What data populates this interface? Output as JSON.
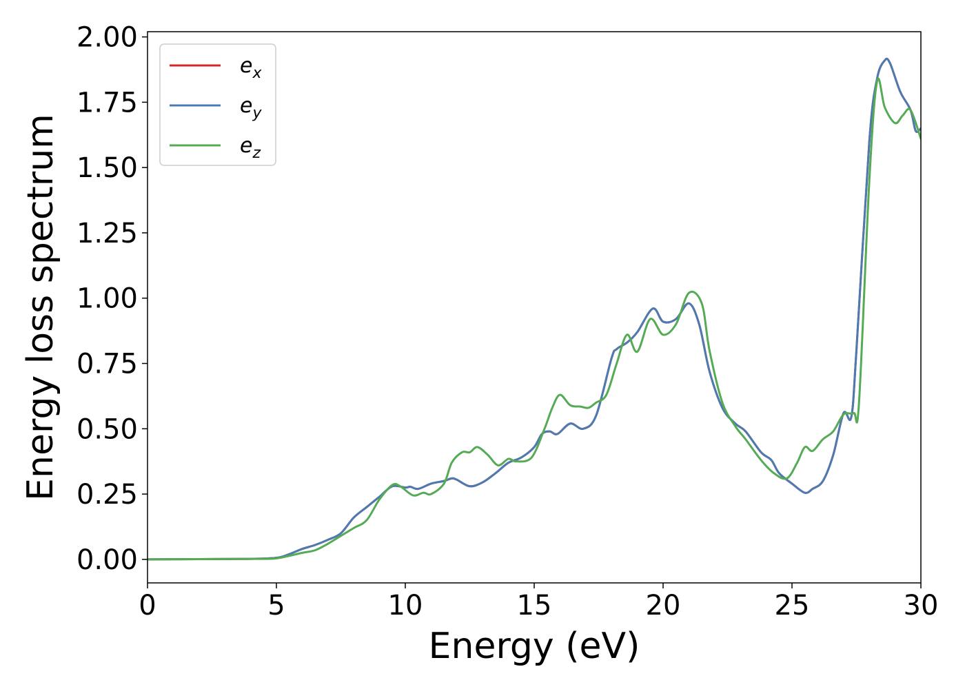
{
  "chart_data": {
    "type": "line",
    "xlabel": "Energy (eV)",
    "ylabel": "Energy loss spectrum",
    "xlim": [
      0,
      30
    ],
    "ylim": [
      -0.09,
      2.02
    ],
    "xticks": [
      0,
      5,
      10,
      15,
      20,
      25,
      30
    ],
    "xtick_labels": [
      "0",
      "5",
      "10",
      "15",
      "20",
      "25",
      "30"
    ],
    "yticks": [
      0,
      0.25,
      0.5,
      0.75,
      1.0,
      1.25,
      1.5,
      1.75,
      2.0
    ],
    "ytick_labels": [
      "0.00",
      "0.25",
      "0.50",
      "0.75",
      "1.00",
      "1.25",
      "1.50",
      "1.75",
      "2.00"
    ],
    "grid": false,
    "legend_position": "top-left",
    "series": [
      {
        "legend_base": "e",
        "legend_sub": "x",
        "color": "#d62728",
        "points": [
          [
            0,
            0
          ],
          [
            2,
            0.001
          ],
          [
            4,
            0.002
          ],
          [
            5,
            0.006
          ],
          [
            5.5,
            0.02
          ],
          [
            6,
            0.04
          ],
          [
            6.5,
            0.055
          ],
          [
            7,
            0.075
          ],
          [
            7.5,
            0.1
          ],
          [
            8,
            0.16
          ],
          [
            8.5,
            0.2
          ],
          [
            9,
            0.24
          ],
          [
            9.5,
            0.28
          ],
          [
            10,
            0.275
          ],
          [
            10.2,
            0.278
          ],
          [
            10.5,
            0.27
          ],
          [
            11,
            0.29
          ],
          [
            11.5,
            0.3
          ],
          [
            11.8,
            0.31
          ],
          [
            12,
            0.305
          ],
          [
            12.5,
            0.28
          ],
          [
            13,
            0.295
          ],
          [
            13.5,
            0.33
          ],
          [
            14,
            0.37
          ],
          [
            14.5,
            0.39
          ],
          [
            15,
            0.43
          ],
          [
            15.3,
            0.48
          ],
          [
            15.6,
            0.49
          ],
          [
            15.9,
            0.48
          ],
          [
            16.4,
            0.52
          ],
          [
            16.9,
            0.5
          ],
          [
            17.4,
            0.55
          ],
          [
            18,
            0.77
          ],
          [
            18.2,
            0.805
          ],
          [
            18.6,
            0.83
          ],
          [
            19,
            0.87
          ],
          [
            19.6,
            0.96
          ],
          [
            20,
            0.91
          ],
          [
            20.5,
            0.92
          ],
          [
            21,
            0.98
          ],
          [
            21.4,
            0.9
          ],
          [
            21.8,
            0.72
          ],
          [
            22.3,
            0.58
          ],
          [
            22.8,
            0.52
          ],
          [
            23.2,
            0.49
          ],
          [
            23.8,
            0.41
          ],
          [
            24.2,
            0.38
          ],
          [
            24.5,
            0.33
          ],
          [
            25,
            0.29
          ],
          [
            25.5,
            0.255
          ],
          [
            25.8,
            0.27
          ],
          [
            26.2,
            0.3
          ],
          [
            26.6,
            0.4
          ],
          [
            27,
            0.56
          ],
          [
            27.3,
            0.545
          ],
          [
            27.5,
            0.8
          ],
          [
            28,
            1.6
          ],
          [
            28.3,
            1.84
          ],
          [
            28.6,
            1.91
          ],
          [
            28.8,
            1.9
          ],
          [
            29.2,
            1.79
          ],
          [
            29.6,
            1.72
          ],
          [
            29.8,
            1.64
          ],
          [
            30,
            1.65
          ]
        ]
      },
      {
        "legend_base": "e",
        "legend_sub": "y",
        "color": "#4c7bb2",
        "points": [
          [
            0,
            0
          ],
          [
            2,
            0.001
          ],
          [
            4,
            0.002
          ],
          [
            5,
            0.006
          ],
          [
            5.5,
            0.02
          ],
          [
            6,
            0.04
          ],
          [
            6.5,
            0.055
          ],
          [
            7,
            0.075
          ],
          [
            7.5,
            0.1
          ],
          [
            8,
            0.16
          ],
          [
            8.5,
            0.2
          ],
          [
            9,
            0.24
          ],
          [
            9.5,
            0.28
          ],
          [
            10,
            0.275
          ],
          [
            10.2,
            0.278
          ],
          [
            10.5,
            0.27
          ],
          [
            11,
            0.29
          ],
          [
            11.5,
            0.3
          ],
          [
            11.8,
            0.31
          ],
          [
            12,
            0.305
          ],
          [
            12.5,
            0.28
          ],
          [
            13,
            0.295
          ],
          [
            13.5,
            0.33
          ],
          [
            14,
            0.37
          ],
          [
            14.5,
            0.39
          ],
          [
            15,
            0.43
          ],
          [
            15.3,
            0.48
          ],
          [
            15.6,
            0.49
          ],
          [
            15.9,
            0.48
          ],
          [
            16.4,
            0.52
          ],
          [
            16.9,
            0.5
          ],
          [
            17.4,
            0.55
          ],
          [
            18,
            0.77
          ],
          [
            18.2,
            0.805
          ],
          [
            18.6,
            0.83
          ],
          [
            19,
            0.87
          ],
          [
            19.6,
            0.96
          ],
          [
            20,
            0.91
          ],
          [
            20.5,
            0.92
          ],
          [
            21,
            0.98
          ],
          [
            21.4,
            0.9
          ],
          [
            21.8,
            0.72
          ],
          [
            22.3,
            0.58
          ],
          [
            22.8,
            0.52
          ],
          [
            23.2,
            0.49
          ],
          [
            23.8,
            0.41
          ],
          [
            24.2,
            0.38
          ],
          [
            24.5,
            0.33
          ],
          [
            25,
            0.29
          ],
          [
            25.5,
            0.255
          ],
          [
            25.8,
            0.27
          ],
          [
            26.2,
            0.3
          ],
          [
            26.6,
            0.4
          ],
          [
            27,
            0.56
          ],
          [
            27.3,
            0.545
          ],
          [
            27.5,
            0.8
          ],
          [
            28,
            1.6
          ],
          [
            28.3,
            1.84
          ],
          [
            28.6,
            1.91
          ],
          [
            28.8,
            1.9
          ],
          [
            29.2,
            1.79
          ],
          [
            29.6,
            1.72
          ],
          [
            29.8,
            1.64
          ],
          [
            30,
            1.65
          ]
        ]
      },
      {
        "legend_base": "e",
        "legend_sub": "z",
        "color": "#55ab55",
        "points": [
          [
            0,
            0
          ],
          [
            2,
            0.001
          ],
          [
            4,
            0.002
          ],
          [
            5,
            0.004
          ],
          [
            6,
            0.025
          ],
          [
            6.5,
            0.035
          ],
          [
            7,
            0.06
          ],
          [
            7.5,
            0.09
          ],
          [
            8,
            0.12
          ],
          [
            8.5,
            0.15
          ],
          [
            9,
            0.23
          ],
          [
            9.5,
            0.285
          ],
          [
            9.8,
            0.28
          ],
          [
            10.3,
            0.245
          ],
          [
            10.7,
            0.255
          ],
          [
            11,
            0.25
          ],
          [
            11.5,
            0.29
          ],
          [
            11.8,
            0.37
          ],
          [
            12.2,
            0.41
          ],
          [
            12.5,
            0.41
          ],
          [
            12.8,
            0.43
          ],
          [
            13.2,
            0.4
          ],
          [
            13.6,
            0.36
          ],
          [
            14,
            0.385
          ],
          [
            14.3,
            0.375
          ],
          [
            14.9,
            0.39
          ],
          [
            15.4,
            0.5
          ],
          [
            15.7,
            0.58
          ],
          [
            16,
            0.63
          ],
          [
            16.4,
            0.59
          ],
          [
            16.8,
            0.585
          ],
          [
            17.1,
            0.58
          ],
          [
            17.4,
            0.6
          ],
          [
            17.8,
            0.63
          ],
          [
            18.2,
            0.75
          ],
          [
            18.6,
            0.86
          ],
          [
            19,
            0.795
          ],
          [
            19.5,
            0.92
          ],
          [
            20,
            0.86
          ],
          [
            20.5,
            0.9
          ],
          [
            21,
            1.02
          ],
          [
            21.5,
            0.98
          ],
          [
            21.8,
            0.8
          ],
          [
            22.3,
            0.6
          ],
          [
            22.8,
            0.51
          ],
          [
            23.2,
            0.46
          ],
          [
            23.8,
            0.38
          ],
          [
            24.3,
            0.33
          ],
          [
            24.8,
            0.31
          ],
          [
            25.2,
            0.37
          ],
          [
            25.5,
            0.43
          ],
          [
            25.8,
            0.415
          ],
          [
            26.2,
            0.46
          ],
          [
            26.6,
            0.49
          ],
          [
            27,
            0.555
          ],
          [
            27.4,
            0.56
          ],
          [
            27.6,
            0.6
          ],
          [
            28,
            1.45
          ],
          [
            28.3,
            1.83
          ],
          [
            28.6,
            1.73
          ],
          [
            29,
            1.67
          ],
          [
            29.3,
            1.7
          ],
          [
            29.6,
            1.72
          ],
          [
            30,
            1.61
          ]
        ]
      }
    ]
  }
}
